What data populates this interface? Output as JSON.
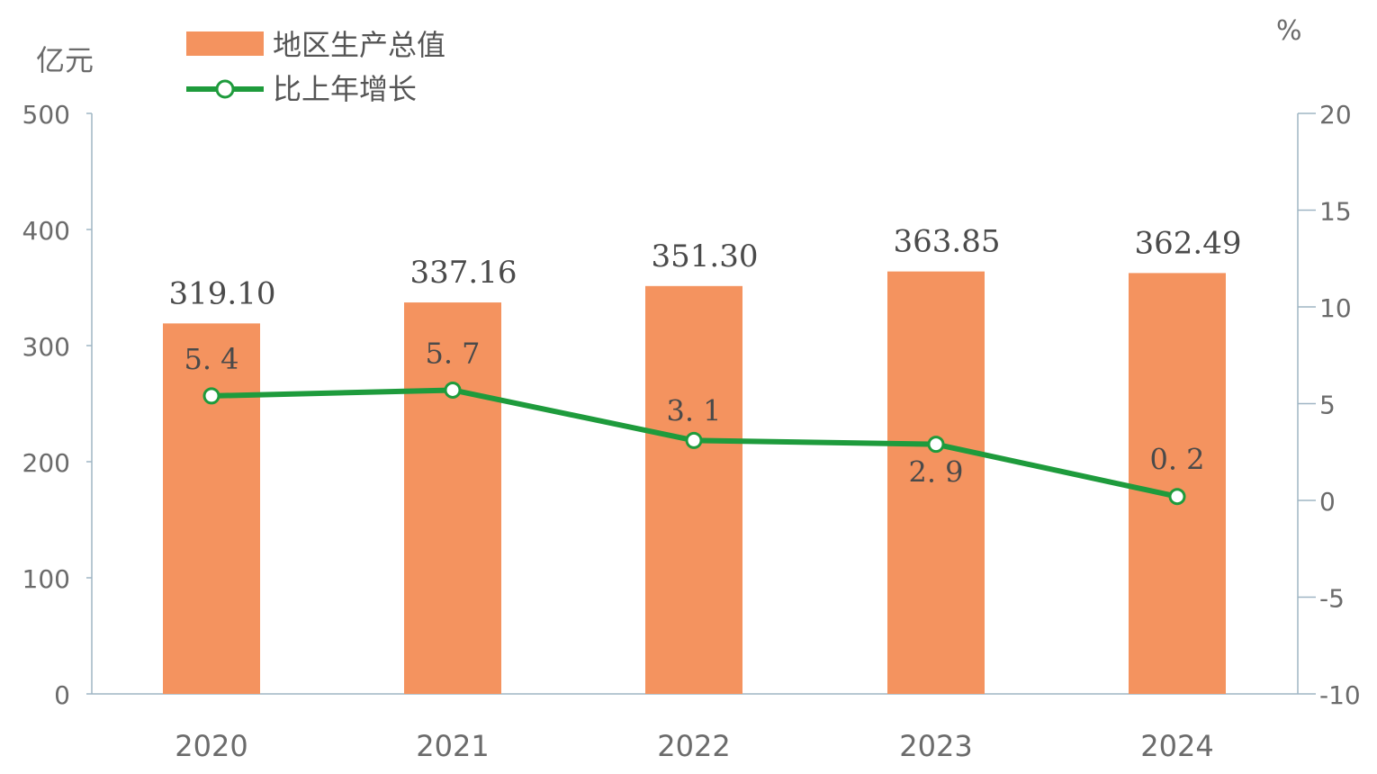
{
  "chart_data": {
    "type": "bar",
    "categories": [
      "2020",
      "2021",
      "2022",
      "2023",
      "2024"
    ],
    "series": [
      {
        "name": "地区生产总值",
        "type": "bar",
        "axis": "left",
        "values": [
          319.1,
          337.16,
          351.3,
          363.85,
          362.49
        ],
        "labels": [
          "319.10",
          "337.16",
          "351.30",
          "363.85",
          "362.49"
        ],
        "color": "#F4935F"
      },
      {
        "name": "比上年增长",
        "type": "line",
        "axis": "right",
        "values": [
          5.4,
          5.7,
          3.1,
          2.9,
          0.2
        ],
        "labels": [
          "5. 4",
          "5. 7",
          "3. 1",
          "2. 9",
          "0. 2"
        ],
        "color": "#1E9B3C"
      }
    ],
    "left_axis": {
      "unit": "亿元",
      "ylim": [
        0,
        500
      ],
      "ticks": [
        "0",
        "100",
        "200",
        "300",
        "400",
        "500"
      ],
      "tick_values": [
        0,
        100,
        200,
        300,
        400,
        500
      ]
    },
    "right_axis": {
      "unit": "%",
      "ylim": [
        -10,
        20
      ],
      "ticks": [
        "-10",
        "-5",
        "0",
        "5",
        "10",
        "15",
        "20"
      ],
      "tick_values": [
        -10,
        -5,
        0,
        5,
        10,
        15,
        20
      ]
    },
    "grid": false,
    "legend": "top-left",
    "colors": {
      "axis": "#9fb5c4",
      "text": "#6b6b6b",
      "label": "#4a4a4a"
    }
  }
}
